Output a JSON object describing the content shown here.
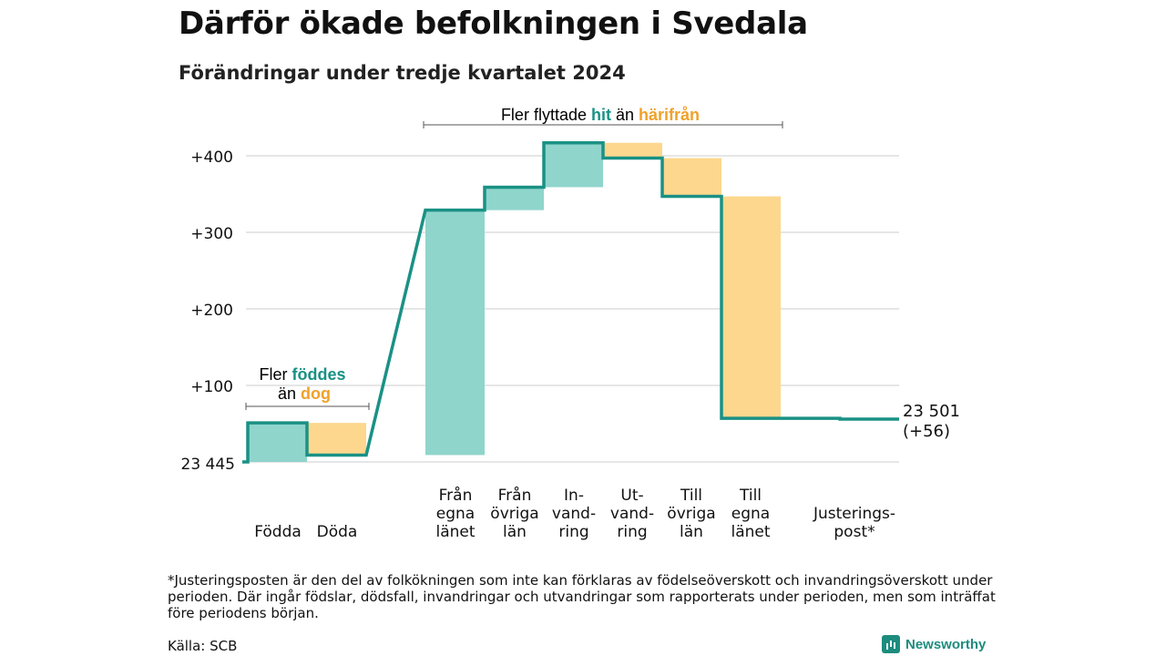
{
  "header": {
    "title": "Därför ökade befolkningen i Svedala",
    "subtitle": "Förändringar under tredje kvartalet 2024"
  },
  "colors": {
    "increase": "#8fd5cc",
    "decrease": "#fcd78d",
    "line": "#1a9185",
    "grid": "#dddddd",
    "teal_text": "#1a9185",
    "orange_text": "#f0a12a"
  },
  "chart_data": {
    "type": "waterfall",
    "base_label": "23 445",
    "end_label_line1": "23 501",
    "end_label_line2": "(+56)",
    "ylim": [
      0,
      420
    ],
    "yticks": [
      {
        "value": 100,
        "label": "+100"
      },
      {
        "value": 200,
        "label": "+200"
      },
      {
        "value": 300,
        "label": "+300"
      },
      {
        "value": 400,
        "label": "+400"
      }
    ],
    "steps": [
      {
        "label": [
          "Födda"
        ],
        "start": 0,
        "end": 51
      },
      {
        "label": [
          "Döda"
        ],
        "start": 51,
        "end": 9
      },
      {
        "label": [
          "Från",
          "egna",
          "länet"
        ],
        "start": 9,
        "end": 329
      },
      {
        "label": [
          "Från",
          "övriga",
          "län"
        ],
        "start": 329,
        "end": 359
      },
      {
        "label": [
          "In-",
          "vand-",
          "ring"
        ],
        "start": 359,
        "end": 417
      },
      {
        "label": [
          "Ut-",
          "vand-",
          "ring"
        ],
        "start": 417,
        "end": 397
      },
      {
        "label": [
          "Till",
          "övriga",
          "län"
        ],
        "start": 397,
        "end": 347
      },
      {
        "label": [
          "Till",
          "egna",
          "länet"
        ],
        "start": 347,
        "end": 57
      },
      {
        "label": [
          "Justerings-",
          "post*"
        ],
        "start": 57,
        "end": 56
      }
    ],
    "annotations": {
      "births": {
        "line1_prefix": "Fler ",
        "line1_highlight": "föddes",
        "line2_prefix": "än ",
        "line2_highlight": "dog"
      },
      "moves": {
        "prefix": "Fler flyttade ",
        "highlight1": "hit",
        "middle": " än ",
        "highlight2": "härifrån"
      }
    }
  },
  "footer": {
    "note": "*Justeringsposten är den del av folkökningen som inte kan förklaras av födelseöverskott och invandringsöverskott under perioden. Där ingår födslar, dödsfall, invandringar och utvandringar som rapporterats under perioden, men som inträffat före periodens början.",
    "source": "Källa: SCB",
    "brand": "Newsworthy"
  }
}
